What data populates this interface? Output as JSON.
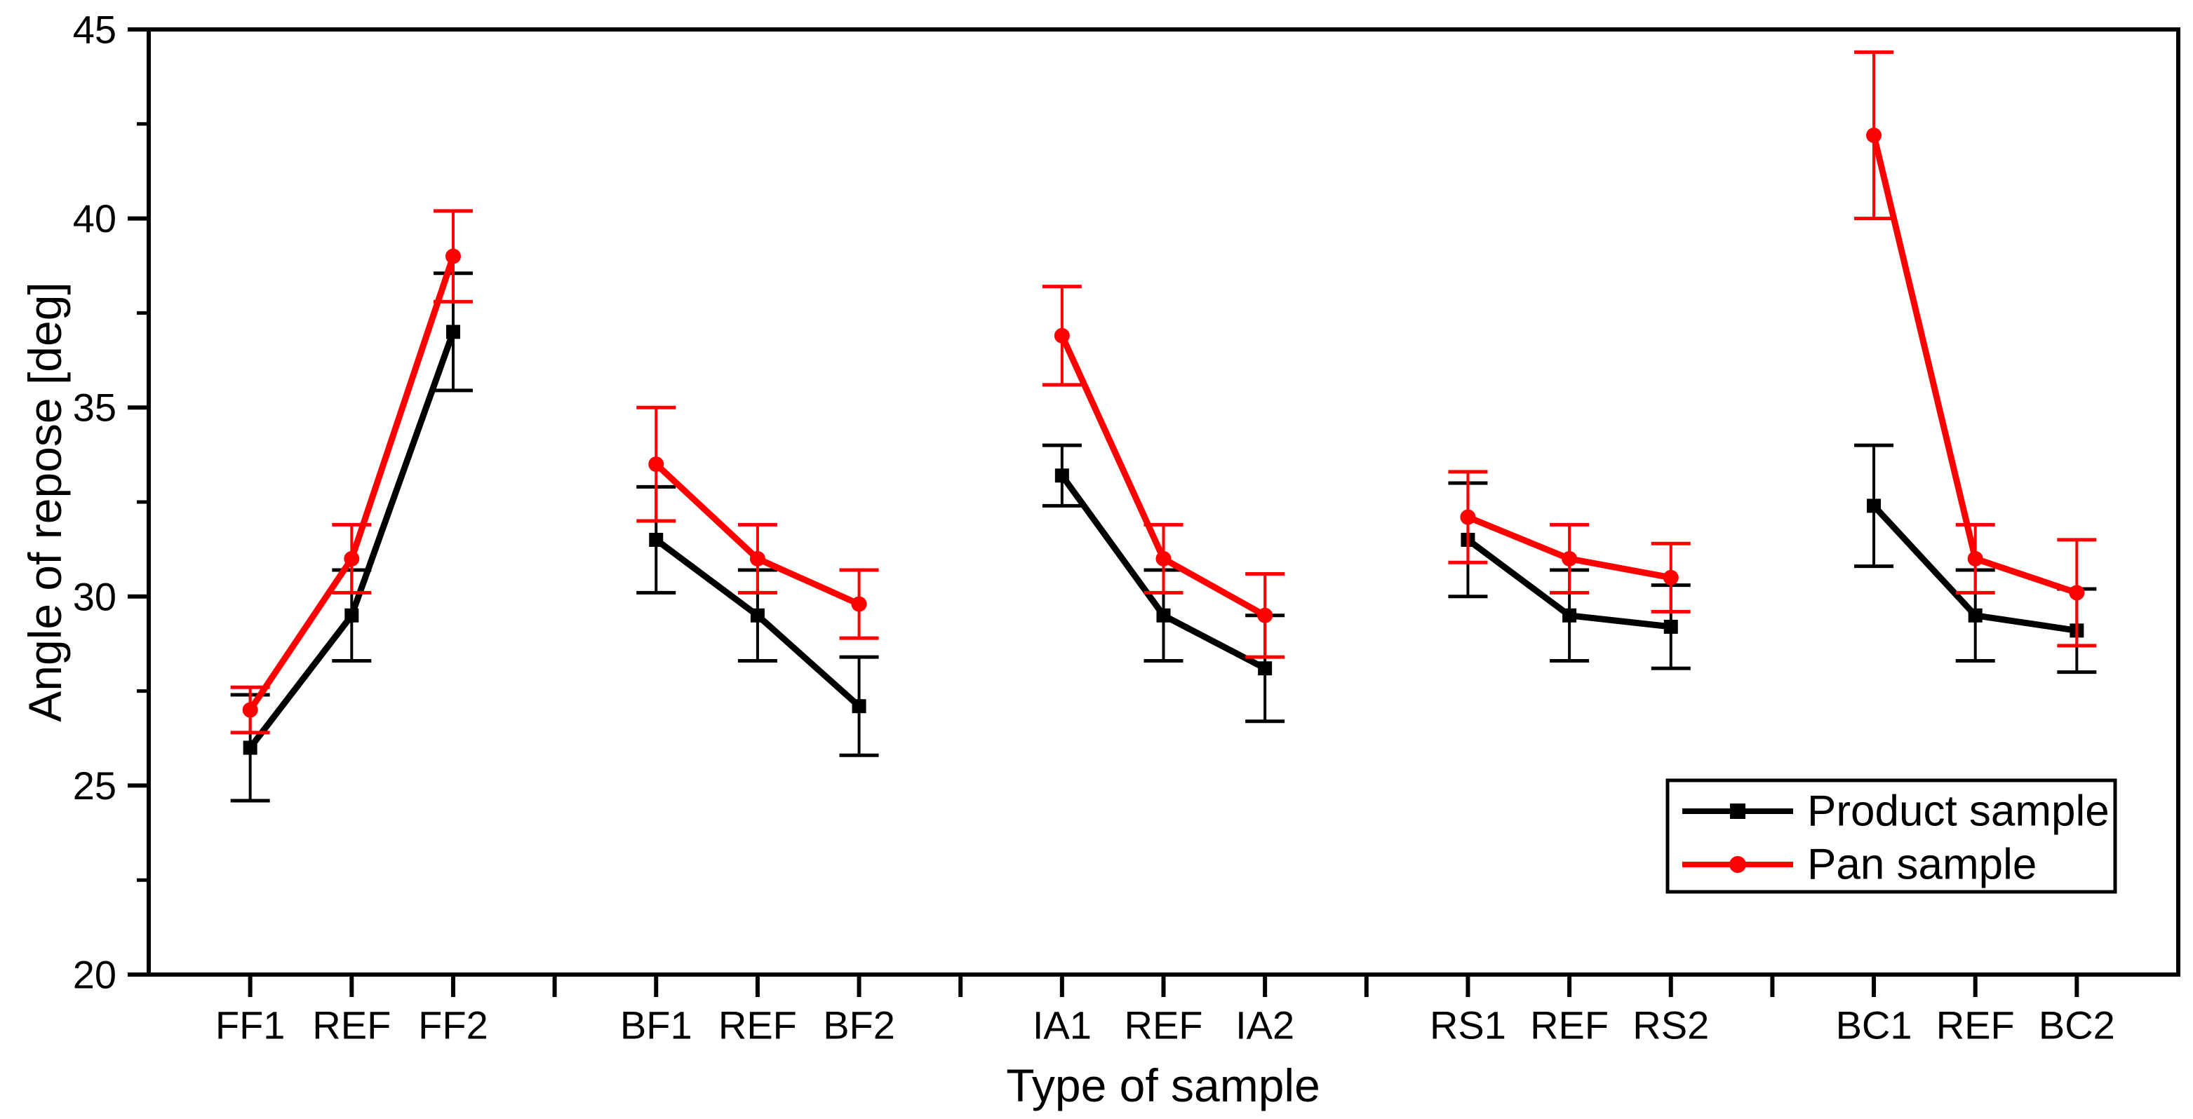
{
  "figure": {
    "background": "#ffffff",
    "frame_color": "#000000"
  },
  "axes": {
    "y": {
      "label": "Angle of repose [deg]",
      "min": 20,
      "max": 45,
      "major_ticks": [
        20,
        25,
        30,
        35,
        40,
        45
      ],
      "minor_ticks": [
        22.5,
        27.5,
        32.5,
        37.5,
        42.5
      ]
    },
    "x": {
      "label": "Type of sample",
      "group_labels": [
        [
          "FF1",
          "REF",
          "FF2"
        ],
        [
          "BF1",
          "REF",
          "BF2"
        ],
        [
          "IA1",
          "REF",
          "IA2"
        ],
        [
          "RS1",
          "REF",
          "RS2"
        ],
        [
          "BC1",
          "REF",
          "BC2"
        ]
      ]
    }
  },
  "legend": {
    "entries": [
      {
        "label": "Product sample",
        "color": "#000000",
        "marker": "square"
      },
      {
        "label": "Pan sample",
        "color": "#ff0000",
        "marker": "circle"
      }
    ]
  },
  "chart_data": {
    "type": "line",
    "grid": false,
    "legend_position": "lower-right-inside",
    "title": "",
    "xlabel": "Type of sample",
    "ylabel": "Angle of repose [deg]",
    "ylim": [
      20,
      45
    ],
    "categories_grouped": [
      [
        "FF1",
        "REF",
        "FF2"
      ],
      [
        "BF1",
        "REF",
        "BF2"
      ],
      [
        "IA1",
        "REF",
        "IA2"
      ],
      [
        "RS1",
        "REF",
        "RS2"
      ],
      [
        "BC1",
        "REF",
        "BC2"
      ]
    ],
    "series": [
      {
        "name": "Product sample",
        "color": "#000000",
        "marker": "square",
        "values": [
          26.0,
          29.5,
          37.0,
          31.5,
          29.5,
          27.1,
          33.2,
          29.5,
          28.1,
          31.5,
          29.5,
          29.2,
          32.4,
          29.5,
          29.1
        ],
        "errors": [
          1.4,
          1.2,
          1.55,
          1.4,
          1.2,
          1.3,
          0.8,
          1.2,
          1.4,
          1.5,
          1.2,
          1.1,
          1.6,
          1.2,
          1.1
        ]
      },
      {
        "name": "Pan sample",
        "color": "#ff0000",
        "marker": "circle",
        "values": [
          27.0,
          31.0,
          39.0,
          33.5,
          31.0,
          29.8,
          36.9,
          31.0,
          29.5,
          32.1,
          31.0,
          30.5,
          42.2,
          31.0,
          30.1
        ],
        "errors": [
          0.6,
          0.9,
          1.2,
          1.5,
          0.9,
          0.9,
          1.3,
          0.9,
          1.1,
          1.2,
          0.9,
          0.9,
          2.2,
          0.9,
          1.4
        ]
      }
    ]
  }
}
